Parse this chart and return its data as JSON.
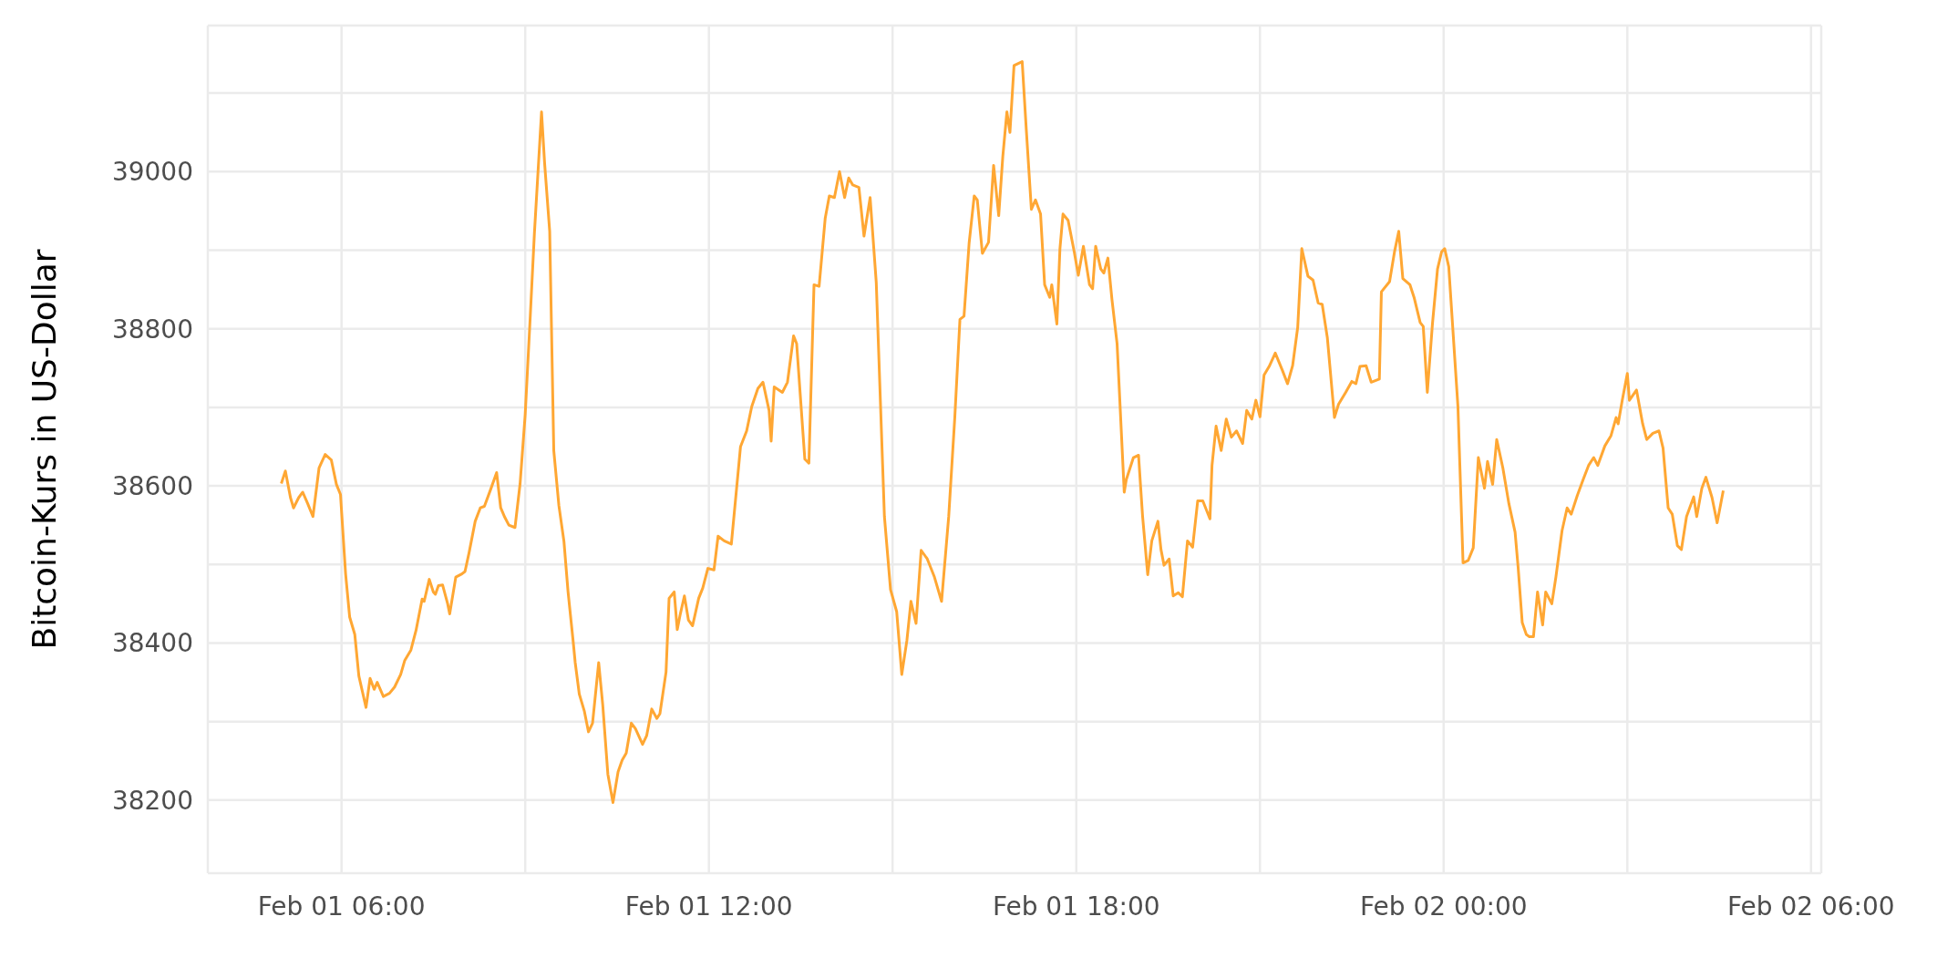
{
  "chart_data": {
    "type": "line",
    "ylabel": "Bitcoin-Kurs in US-Dollar",
    "xlim": [
      "--02-01T03:49",
      "--02-02T06:10"
    ],
    "xticks": [
      {
        "value": "--02-01T06:00",
        "label": "Feb 01 06:00"
      },
      {
        "value": "--02-01T09:00",
        "label": null
      },
      {
        "value": "--02-01T12:00",
        "label": "Feb 01 12:00"
      },
      {
        "value": "--02-01T15:00",
        "label": null
      },
      {
        "value": "--02-01T18:00",
        "label": "Feb 01 18:00"
      },
      {
        "value": "--02-01T21:00",
        "label": null
      },
      {
        "value": "--02-02T00:00",
        "label": "Feb 02 00:00"
      },
      {
        "value": "--02-02T03:00",
        "label": null
      },
      {
        "value": "--02-02T06:00",
        "label": "Feb 02 06:00"
      }
    ],
    "ylim": [
      38107,
      39186
    ],
    "yticks": [
      38200,
      {
        "value": 38300,
        "label": null
      },
      38400,
      {
        "value": 38500,
        "label": null
      },
      38600,
      {
        "value": 38700,
        "label": null
      },
      38800,
      {
        "value": 38900,
        "label": null
      },
      39000,
      {
        "value": 39100,
        "label": null
      }
    ],
    "grid": true,
    "x": [
      "--02-01T05:01",
      "--02-01T05:05",
      "--02-01T05:10",
      "--02-01T05:13",
      "--02-01T05:18",
      "--02-01T05:22",
      "--02-01T05:27",
      "--02-01T05:32",
      "--02-01T05:38",
      "--02-01T05:44",
      "--02-01T05:50",
      "--02-01T05:55",
      "--02-01T05:59",
      "--02-01T06:04",
      "--02-01T06:08",
      "--02-01T06:13",
      "--02-01T06:17",
      "--02-01T06:24",
      "--02-01T06:28",
      "--02-01T06:32",
      "--02-01T06:35",
      "--02-01T06:41",
      "--02-01T06:47",
      "--02-01T06:52",
      "--02-01T06:58",
      "--02-01T07:02",
      "--02-01T07:08",
      "--02-01T07:13",
      "--02-01T07:19",
      "--02-01T07:21",
      "--02-01T07:26",
      "--02-01T07:30",
      "--02-01T07:32",
      "--02-01T07:35",
      "--02-01T07:39",
      "--02-01T07:44",
      "--02-01T07:46",
      "--02-01T07:52",
      "--02-01T07:58",
      "--02-01T08:01",
      "--02-01T08:05",
      "--02-01T08:11",
      "--02-01T08:16",
      "--02-01T08:20",
      "--02-01T08:26",
      "--02-01T08:32",
      "--02-01T08:36",
      "--02-01T08:40",
      "--02-01T08:44",
      "--02-01T08:50",
      "--02-01T08:55",
      "--02-01T09:00",
      "--02-01T09:05",
      "--02-01T09:09",
      "--02-01T09:16",
      "--02-01T09:19",
      "--02-01T09:24",
      "--02-01T09:28",
      "--02-01T09:33",
      "--02-01T09:38",
      "--02-01T09:42",
      "--02-01T09:47",
      "--02-01T09:49",
      "--02-01T09:53",
      "--02-01T09:58",
      "--02-01T10:02",
      "--02-01T10:06",
      "--02-01T10:12",
      "--02-01T10:16",
      "--02-01T10:21",
      "--02-01T10:26",
      "--02-01T10:31",
      "--02-01T10:35",
      "--02-01T10:39",
      "--02-01T10:44",
      "--02-01T10:48",
      "--02-01T10:55",
      "--02-01T10:59",
      "--02-01T11:04",
      "--02-01T11:09",
      "--02-01T11:12",
      "--02-01T11:18",
      "--02-01T11:21",
      "--02-01T11:26",
      "--02-01T11:29",
      "--02-01T11:32",
      "--02-01T11:36",
      "--02-01T11:40",
      "--02-01T11:44",
      "--02-01T11:50",
      "--02-01T11:54",
      "--02-01T11:59",
      "--02-01T12:05",
      "--02-01T12:09",
      "--02-01T12:15",
      "--02-01T12:22",
      "--02-01T12:31",
      "--02-01T12:37",
      "--02-01T12:42",
      "--02-01T12:48",
      "--02-01T12:53",
      "--02-01T12:59",
      "--02-01T13:01",
      "--02-01T13:04",
      "--02-01T13:12",
      "--02-01T13:17",
      "--02-01T13:23",
      "--02-01T13:26",
      "--02-01T13:34",
      "--02-01T13:38",
      "--02-01T13:43",
      "--02-01T13:48",
      "--02-01T13:54",
      "--02-01T13:58",
      "--02-01T14:03",
      "--02-01T14:08",
      "--02-01T14:13",
      "--02-01T14:17",
      "--02-01T14:21",
      "--02-01T14:27",
      "--02-01T14:32",
      "--02-01T14:38",
      "--02-01T14:44",
      "--02-01T14:52",
      "--02-01T14:58",
      "--02-01T15:04",
      "--02-01T15:09",
      "--02-01T15:14",
      "--02-01T15:18",
      "--02-01T15:23",
      "--02-01T15:28",
      "--02-01T15:34",
      "--02-01T15:41",
      "--02-01T15:48",
      "--02-01T15:55",
      "--02-01T16:01",
      "--02-01T16:06",
      "--02-01T16:10",
      "--02-01T16:15",
      "--02-01T16:20",
      "--02-01T16:23",
      "--02-01T16:28",
      "--02-01T16:34",
      "--02-01T16:39",
      "--02-01T16:44",
      "--02-01T16:48",
      "--02-01T16:52",
      "--02-01T16:55",
      "--02-01T16:59",
      "--02-01T17:07",
      "--02-01T17:11",
      "--02-01T17:16",
      "--02-01T17:20",
      "--02-01T17:25",
      "--02-01T17:29",
      "--02-01T17:34",
      "--02-01T17:36",
      "--02-01T17:41",
      "--02-01T17:44",
      "--02-01T17:47",
      "--02-01T17:52",
      "--02-01T17:58",
      "--02-01T18:02",
      "--02-01T18:07",
      "--02-01T18:13",
      "--02-01T18:16",
      "--02-01T18:19",
      "--02-01T18:24",
      "--02-01T18:27",
      "--02-01T18:31",
      "--02-01T18:35",
      "--02-01T18:40",
      "--02-01T18:47",
      "--02-01T18:49",
      "--02-01T18:56",
      "--02-01T19:01",
      "--02-01T19:05",
      "--02-01T19:10",
      "--02-01T19:14",
      "--02-01T19:20",
      "--02-01T19:23",
      "--02-01T19:26",
      "--02-01T19:31",
      "--02-01T19:35",
      "--02-01T19:40",
      "--02-01T19:44",
      "--02-01T19:49",
      "--02-01T19:54",
      "--02-01T19:59",
      "--02-01T20:04",
      "--02-01T20:11",
      "--02-01T20:13",
      "--02-01T20:17",
      "--02-01T20:22",
      "--02-01T20:27",
      "--02-01T20:32",
      "--02-01T20:37",
      "--02-01T20:43",
      "--02-01T20:47",
      "--02-01T20:52",
      "--02-01T20:56",
      "--02-01T21:00",
      "--02-01T21:04",
      "--02-01T21:09",
      "--02-01T21:15",
      "--02-01T21:22",
      "--02-01T21:27",
      "--02-01T21:32",
      "--02-01T21:37",
      "--02-01T21:41",
      "--02-01T21:47",
      "--02-01T21:52",
      "--02-01T21:57",
      "--02-01T22:01",
      "--02-01T22:06",
      "--02-01T22:13",
      "--02-01T22:17",
      "--02-01T22:24",
      "--02-01T22:30",
      "--02-01T22:34",
      "--02-01T22:38",
      "--02-01T22:44",
      "--02-01T22:49",
      "--02-01T22:57",
      "--02-01T22:59",
      "--02-01T23:07",
      "--02-01T23:12",
      "--02-01T23:16",
      "--02-01T23:20",
      "--02-01T23:27",
      "--02-01T23:31",
      "--02-01T23:37",
      "--02-01T23:40",
      "--02-01T23:44",
      "--02-01T23:49",
      "--02-01T23:54",
      "--02-01T23:58",
      "--02-02T00:01",
      "--02-02T00:05",
      "--02-02T00:14",
      "--02-02T00:19",
      "--02-02T00:24",
      "--02-02T00:29",
      "--02-02T00:34",
      "--02-02T00:40",
      "--02-02T00:43",
      "--02-02T00:48",
      "--02-02T00:52",
      "--02-02T00:58",
      "--02-02T01:04",
      "--02-02T01:10",
      "--02-02T01:13",
      "--02-02T01:17",
      "--02-02T01:21",
      "--02-02T01:24",
      "--02-02T01:28",
      "--02-02T01:32",
      "--02-02T01:37",
      "--02-02T01:40",
      "--02-02T01:46",
      "--02-02T01:50",
      "--02-02T01:56",
      "--02-02T02:01",
      "--02-02T02:05",
      "--02-02T02:11",
      "--02-02T02:17",
      "--02-02T02:22",
      "--02-02T02:27",
      "--02-02T02:31",
      "--02-02T02:38",
      "--02-02T02:44",
      "--02-02T02:49",
      "--02-02T02:51",
      "--02-02T02:55",
      "--02-02T03:00",
      "--02-02T03:02",
      "--02-02T03:09",
      "--02-02T03:15",
      "--02-02T03:19",
      "--02-02T03:25",
      "--02-02T03:31",
      "--02-02T03:35",
      "--02-02T03:40",
      "--02-02T03:44",
      "--02-02T03:49",
      "--02-02T03:53",
      "--02-02T03:58",
      "--02-02T04:05",
      "--02-02T04:08",
      "--02-02T04:13",
      "--02-02T04:17",
      "--02-02T04:23",
      "--02-02T04:28",
      "--02-02T04:34"
    ],
    "series": [
      {
        "color": "#ffa733",
        "values": [
          38603,
          38619,
          38585,
          38572,
          38585,
          38592,
          38577,
          38561,
          38623,
          38640,
          38633,
          38602,
          38589,
          38488,
          38433,
          38411,
          38358,
          38318,
          38355,
          38341,
          38350,
          38332,
          38336,
          38344,
          38360,
          38378,
          38391,
          38416,
          38456,
          38453,
          38481,
          38465,
          38462,
          38473,
          38474,
          38450,
          38437,
          38484,
          38488,
          38491,
          38515,
          38555,
          38572,
          38574,
          38595,
          38617,
          38572,
          38560,
          38550,
          38547,
          38603,
          38691,
          38817,
          38921,
          39076,
          39011,
          38924,
          38645,
          38575,
          38529,
          38465,
          38402,
          38375,
          38335,
          38313,
          38287,
          38298,
          38375,
          38321,
          38233,
          38197,
          38236,
          38251,
          38260,
          38298,
          38291,
          38271,
          38282,
          38316,
          38304,
          38310,
          38363,
          38457,
          38465,
          38417,
          38437,
          38460,
          38429,
          38422,
          38457,
          38470,
          38495,
          38493,
          38536,
          38530,
          38526,
          38650,
          38670,
          38701,
          38724,
          38732,
          38696,
          38657,
          38726,
          38719,
          38732,
          38791,
          38781,
          38634,
          38629,
          38856,
          38854,
          38941,
          38969,
          38967,
          39000,
          38967,
          38992,
          38983,
          38980,
          38918,
          38967,
          38859,
          38561,
          38468,
          38440,
          38360,
          38403,
          38453,
          38425,
          38518,
          38507,
          38484,
          38453,
          38561,
          38688,
          38812,
          38816,
          38909,
          38969,
          38964,
          38896,
          38910,
          39008,
          38944,
          39019,
          39076,
          39050,
          39135,
          39140,
          39054,
          38952,
          38964,
          38946,
          38856,
          38840,
          38856,
          38806,
          38902,
          38946,
          38938,
          38898,
          38868,
          38905,
          38856,
          38851,
          38905,
          38876,
          38871,
          38890,
          38837,
          38781,
          38592,
          38608,
          38636,
          38639,
          38561,
          38487,
          38530,
          38555,
          38519,
          38499,
          38507,
          38460,
          38464,
          38459,
          38530,
          38522,
          38581,
          38581,
          38558,
          38626,
          38676,
          38645,
          38685,
          38662,
          38670,
          38654,
          38696,
          38685,
          38709,
          38688,
          38741,
          38752,
          38769,
          38747,
          38730,
          38753,
          38802,
          38902,
          38867,
          38862,
          38833,
          38831,
          38789,
          38687,
          38704,
          38719,
          38733,
          38730,
          38752,
          38753,
          38732,
          38736,
          38847,
          38860,
          38899,
          38924,
          38864,
          38856,
          38840,
          38808,
          38803,
          38719,
          38806,
          38876,
          38898,
          38902,
          38879,
          38701,
          38502,
          38505,
          38521,
          38636,
          38597,
          38631,
          38602,
          38659,
          38623,
          38577,
          38541,
          38496,
          38426,
          38411,
          38408,
          38408,
          38465,
          38423,
          38465,
          38450,
          38484,
          38543,
          38572,
          38564,
          38588,
          38609,
          38626,
          38636,
          38626,
          38651,
          38664,
          38687,
          38679,
          38709,
          38743,
          38709,
          38722,
          38679,
          38659,
          38667,
          38670,
          38648,
          38572,
          38564,
          38524,
          38519,
          38561,
          38586,
          38561,
          38597,
          38611,
          38585,
          38553,
          38594
        ]
      }
    ]
  }
}
